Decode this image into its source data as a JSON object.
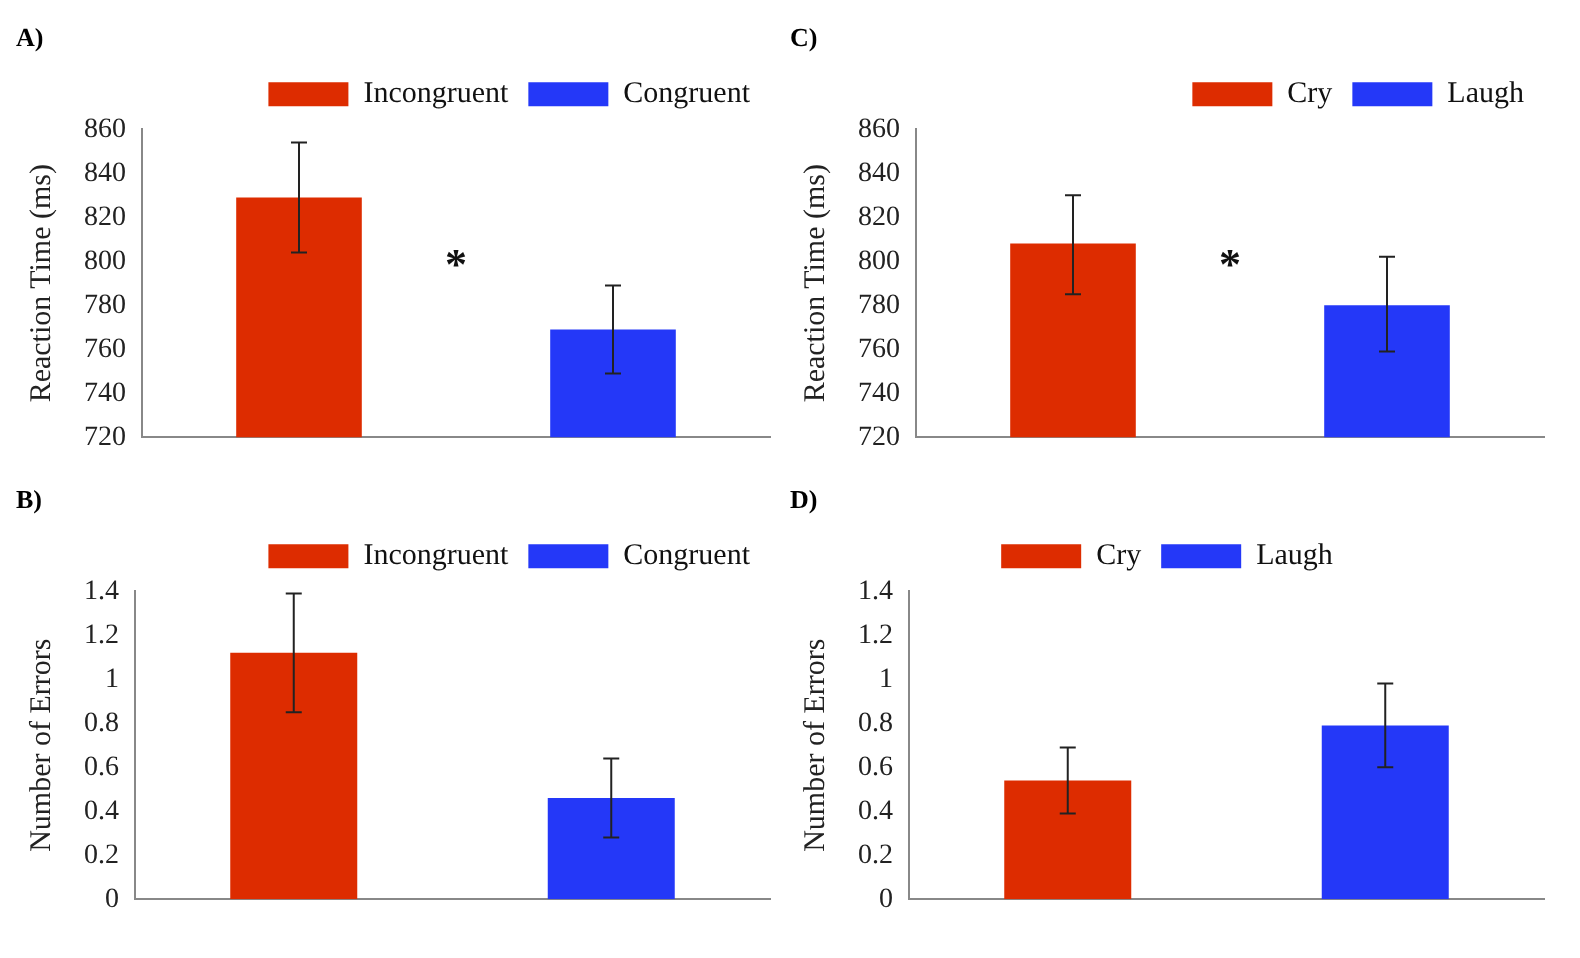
{
  "chart_data": [
    {
      "type": "bar",
      "title": "A)",
      "ylabel": "Reaction Time (ms)",
      "categories": [
        null,
        null
      ],
      "ylim": [
        720,
        860
      ],
      "yticks": [
        720,
        740,
        760,
        780,
        800,
        820,
        840,
        860
      ],
      "grid": false,
      "legend": "top right",
      "annotations": [
        "*"
      ],
      "series": [
        {
          "name": "Incongruent",
          "color": "#dd2c00",
          "values": [
            829,
            null
          ],
          "errors": [
            [
              804,
              854
            ],
            null
          ]
        },
        {
          "name": "Congruent",
          "color": "#2438f8",
          "values": [
            null,
            769
          ],
          "errors": [
            null,
            [
              749,
              789
            ]
          ]
        }
      ]
    },
    {
      "type": "bar",
      "title": "C)",
      "ylabel": "Reaction Time (ms)",
      "categories": [
        null,
        null
      ],
      "ylim": [
        720,
        860
      ],
      "yticks": [
        720,
        740,
        760,
        780,
        800,
        820,
        840,
        860
      ],
      "grid": false,
      "legend": "top right",
      "annotations": [
        "*"
      ],
      "series": [
        {
          "name": "Cry",
          "color": "#dd2c00",
          "values": [
            808,
            null
          ],
          "errors": [
            [
              785,
              830
            ],
            null
          ]
        },
        {
          "name": "Laugh",
          "color": "#2438f8",
          "values": [
            null,
            780
          ],
          "errors": [
            null,
            [
              759,
              802
            ]
          ]
        }
      ]
    },
    {
      "type": "bar",
      "title": "B)",
      "ylabel": "Number of Errors",
      "categories": [
        null,
        null
      ],
      "ylim": [
        0,
        1.4
      ],
      "yticks": [
        0,
        0.2,
        0.4,
        0.6,
        0.8,
        1,
        1.2,
        1.4
      ],
      "grid": false,
      "legend": "top right",
      "series": [
        {
          "name": "Incongruent",
          "color": "#dd2c00",
          "values": [
            1.12,
            null
          ],
          "errors": [
            [
              0.85,
              1.39
            ],
            null
          ]
        },
        {
          "name": "Congruent",
          "color": "#2438f8",
          "values": [
            null,
            0.46
          ],
          "errors": [
            null,
            [
              0.28,
              0.64
            ]
          ]
        }
      ]
    },
    {
      "type": "bar",
      "title": "D)",
      "ylabel": "Number of Errors",
      "categories": [
        null,
        null
      ],
      "ylim": [
        0,
        1.4
      ],
      "yticks": [
        0,
        0.2,
        0.4,
        0.6,
        0.8,
        1,
        1.2,
        1.4
      ],
      "grid": false,
      "legend": "top",
      "series": [
        {
          "name": "Cry",
          "color": "#dd2c00",
          "values": [
            0.54,
            null
          ],
          "errors": [
            [
              0.39,
              0.69
            ],
            null
          ]
        },
        {
          "name": "Laugh",
          "color": "#2438f8",
          "values": [
            null,
            0.79
          ],
          "errors": [
            null,
            [
              0.6,
              0.98
            ]
          ]
        }
      ]
    }
  ]
}
